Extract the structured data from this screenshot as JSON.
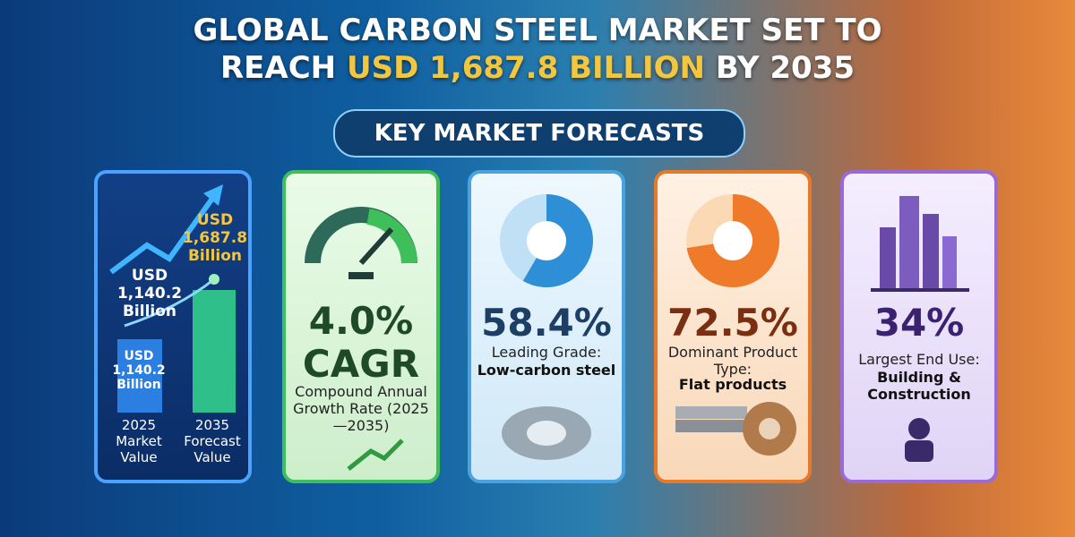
{
  "header": {
    "title_line1": "GLOBAL CARBON STEEL MARKET SET TO",
    "title_pre": "REACH",
    "title_highlight": "USD 1,687.8 BILLION",
    "title_post": "BY 2035",
    "subtitle": "KEY MARKET FORECASTS"
  },
  "cards": [
    {
      "top_label": "USD 1,687.8 Billion",
      "mid_label": "USD 1,140.2 Billion",
      "bar_label": "USD 1,140.2 Billion",
      "col1": "2025 Market Value",
      "col2": "2035 Forecast Value"
    },
    {
      "value": "4.0%",
      "unit": "CAGR",
      "caption": "Compound Annual Growth Rate (2025—2035)"
    },
    {
      "share": {
        "value": 58.4,
        "label": "58.4%"
      },
      "caption": "Leading Grade:",
      "detail": "Low-carbon steel"
    },
    {
      "share": {
        "value": 72.5,
        "label": "72.5%"
      },
      "caption": "Dominant Product Type:",
      "detail": "Flat products"
    },
    {
      "value": "34%",
      "caption": "Largest End Use:",
      "detail": "Building & Construction"
    }
  ]
}
